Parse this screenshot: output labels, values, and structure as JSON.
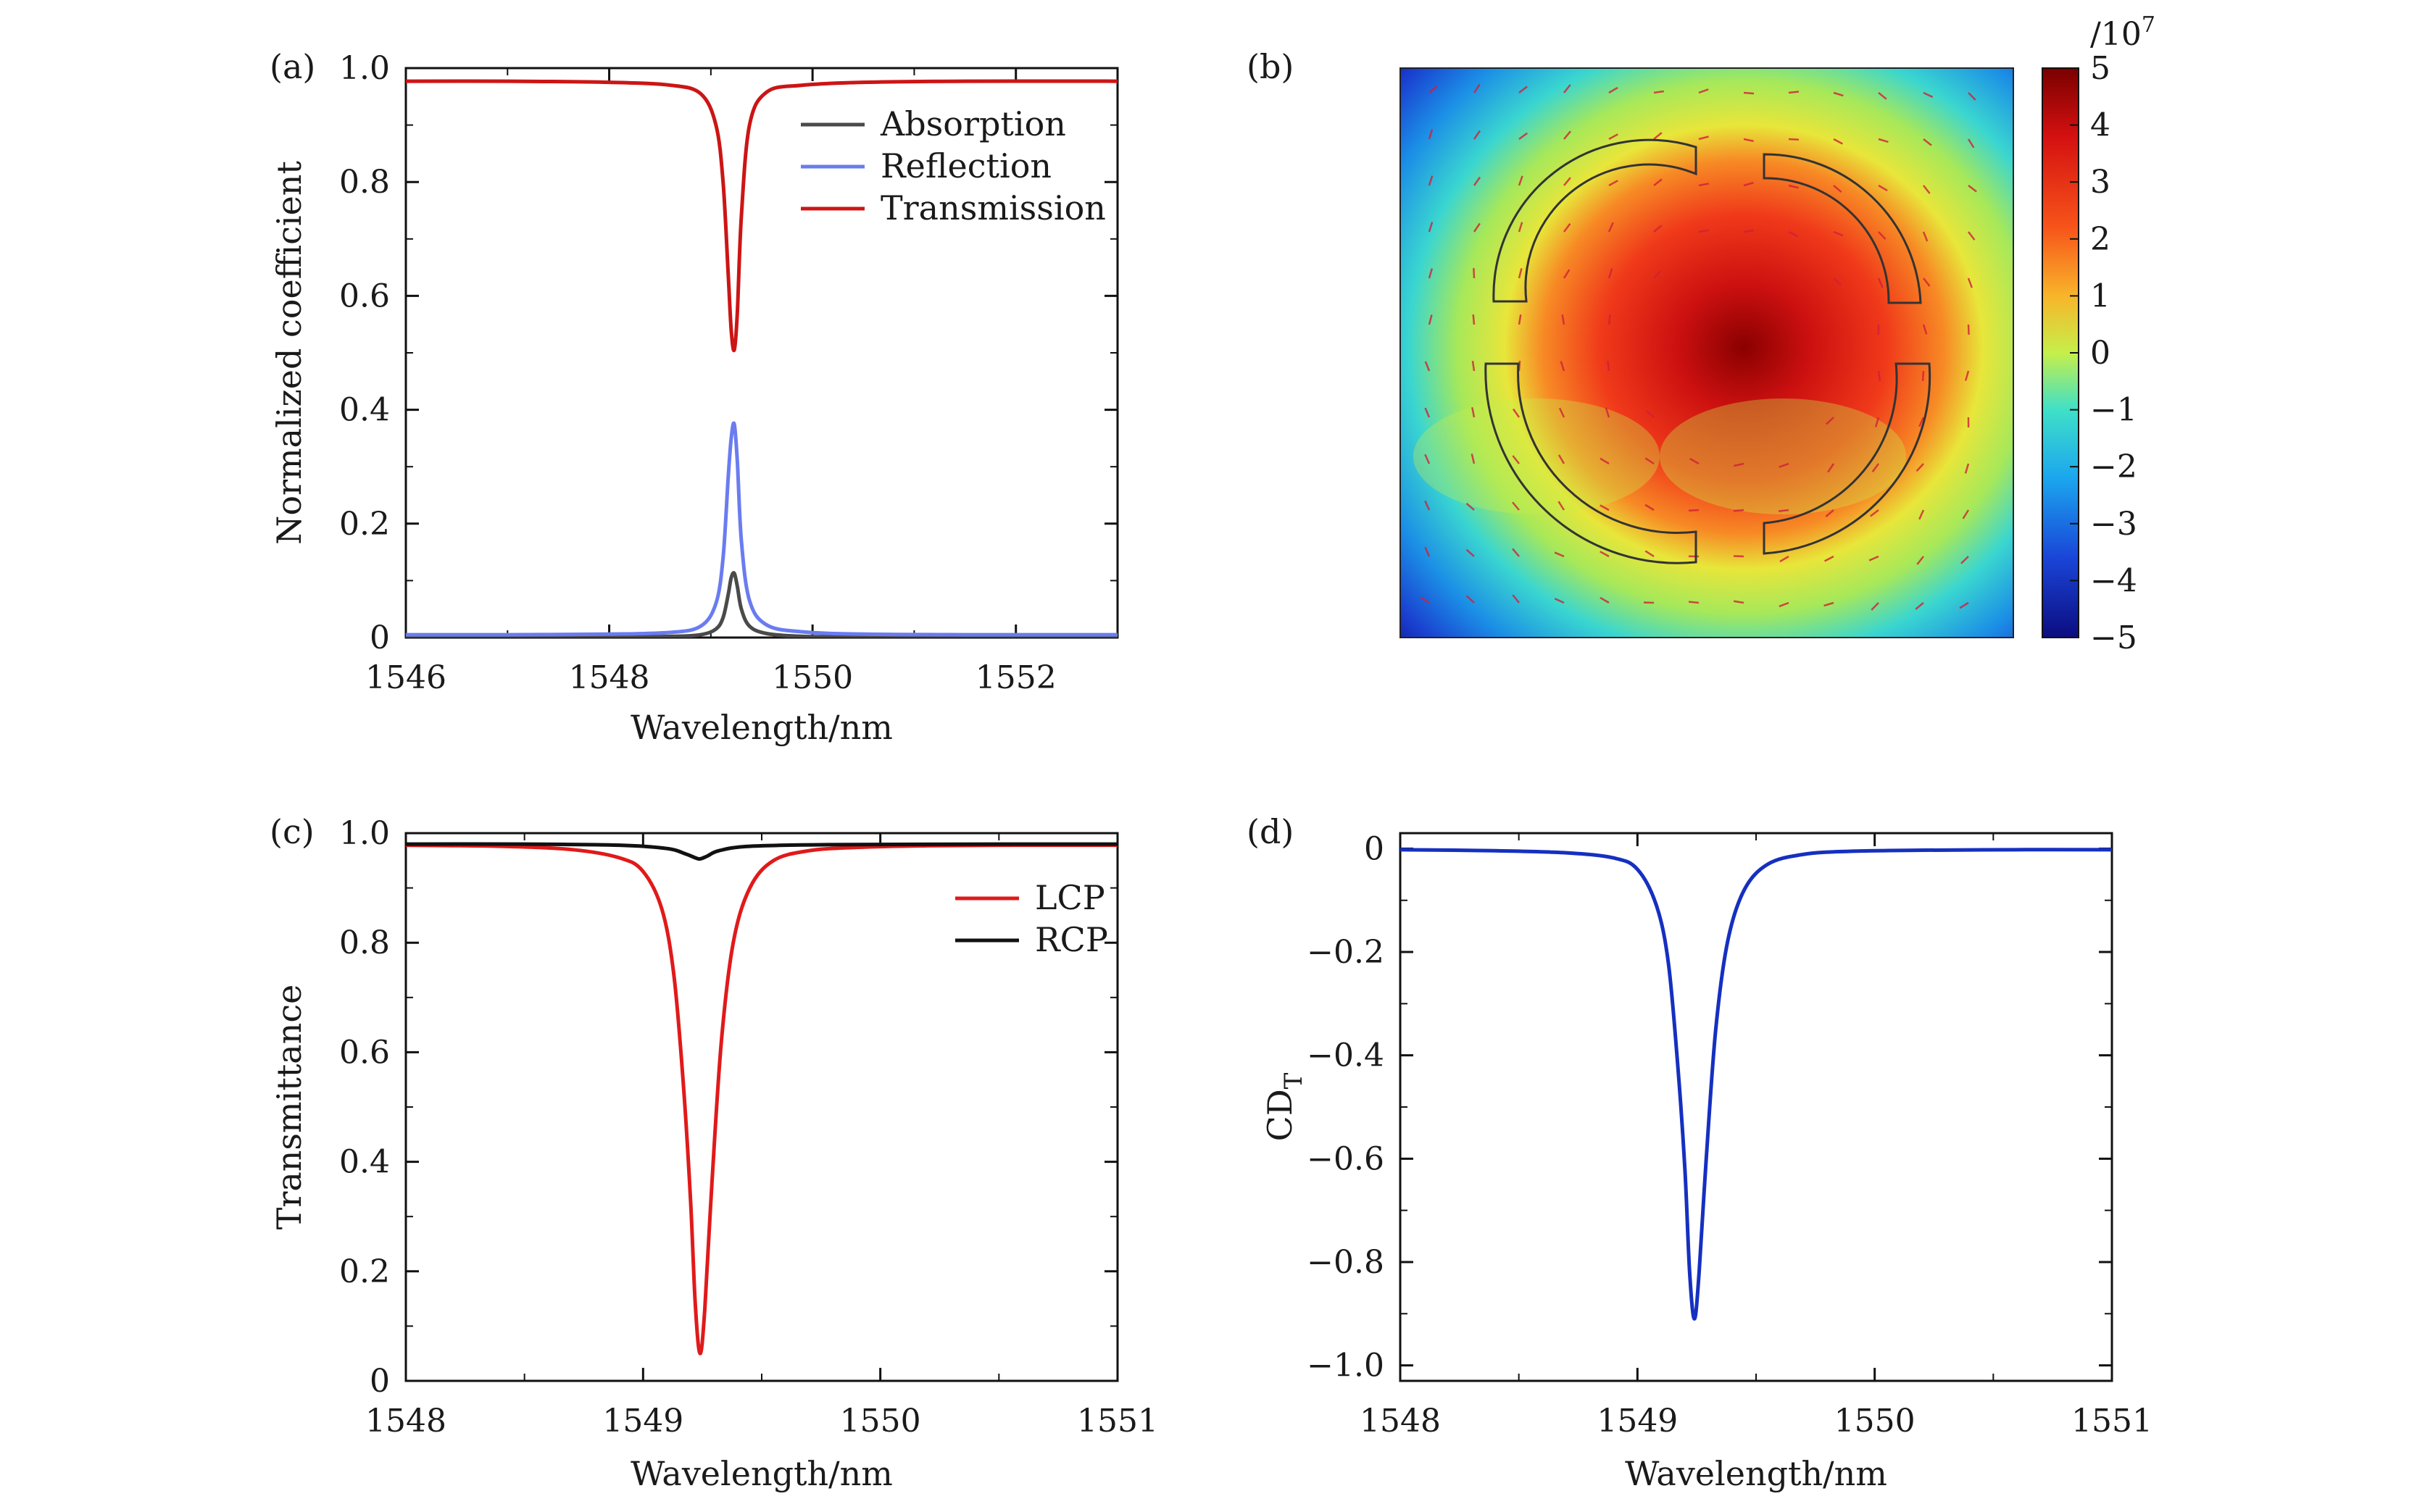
{
  "colors": {
    "absorption": "#4a4a4a",
    "reflection": "#6a7cf0",
    "transmission": "#cc1515",
    "lcp": "#e01a1a",
    "rcp": "#111111",
    "cd": "#1530c0"
  },
  "chart_data": [
    {
      "id": "a",
      "type": "line",
      "panel_label": "(a)",
      "xlabel": "Wavelength/nm",
      "ylabel": "Normalized coefficient",
      "xlim": [
        1546,
        1553
      ],
      "ylim": [
        0,
        1.0
      ],
      "xticks": [
        1546,
        1548,
        1550,
        1552
      ],
      "xtick_labels": [
        "1546",
        "1548",
        "1550",
        "1552"
      ],
      "yticks": [
        0,
        0.2,
        0.4,
        0.6,
        0.8,
        1.0
      ],
      "ytick_labels": [
        "0",
        "0.2",
        "0.4",
        "0.6",
        "0.8",
        "1.0"
      ],
      "legend_position": "top-right",
      "series": [
        {
          "name": "Absorption",
          "color_key": "absorption",
          "x": [
            1546.0,
            1547.0,
            1548.0,
            1548.6,
            1548.9,
            1549.05,
            1549.12,
            1549.17,
            1549.2,
            1549.23,
            1549.26,
            1549.3,
            1549.38,
            1549.55,
            1549.9,
            1550.5,
            1551.5,
            1553.0
          ],
          "y": [
            0.0,
            0.0,
            0.001,
            0.002,
            0.005,
            0.015,
            0.035,
            0.075,
            0.105,
            0.113,
            0.09,
            0.05,
            0.02,
            0.007,
            0.002,
            0.001,
            0.0,
            0.0
          ]
        },
        {
          "name": "Reflection",
          "color_key": "reflection",
          "x": [
            1546.0,
            1547.0,
            1548.0,
            1548.6,
            1548.9,
            1549.05,
            1549.12,
            1549.17,
            1549.2,
            1549.23,
            1549.26,
            1549.3,
            1549.38,
            1549.55,
            1549.9,
            1550.5,
            1551.5,
            1553.0
          ],
          "y": [
            0.005,
            0.005,
            0.006,
            0.009,
            0.02,
            0.06,
            0.14,
            0.28,
            0.35,
            0.375,
            0.31,
            0.17,
            0.065,
            0.022,
            0.01,
            0.006,
            0.005,
            0.005
          ]
        },
        {
          "name": "Transmission",
          "color_key": "transmission",
          "x": [
            1546.0,
            1547.0,
            1548.0,
            1548.6,
            1548.9,
            1549.05,
            1549.12,
            1549.17,
            1549.2,
            1549.23,
            1549.26,
            1549.3,
            1549.38,
            1549.55,
            1549.9,
            1550.5,
            1551.5,
            1553.0
          ],
          "y": [
            0.977,
            0.977,
            0.975,
            0.97,
            0.955,
            0.9,
            0.8,
            0.64,
            0.54,
            0.505,
            0.57,
            0.74,
            0.9,
            0.958,
            0.97,
            0.975,
            0.977,
            0.977
          ]
        }
      ]
    },
    {
      "id": "b",
      "type": "heatmap",
      "panel_label": "(b)",
      "colorbar_scale": "/10",
      "colorbar_exponent": "7",
      "colorbar_range": [
        -5,
        5
      ],
      "colorbar_ticks": [
        5,
        4,
        3,
        2,
        1,
        0,
        -1,
        -2,
        -3,
        -4,
        -5
      ],
      "colorbar_tick_labels": [
        "5",
        "4",
        "3",
        "2",
        "1",
        "0",
        "−1",
        "−2",
        "−3",
        "−4",
        "−5"
      ],
      "description_values": {
        "center_max": 5,
        "corner_min": -5
      }
    },
    {
      "id": "c",
      "type": "line",
      "panel_label": "(c)",
      "xlabel": "Wavelength/nm",
      "ylabel": "Transmittance",
      "xlim": [
        1548,
        1551
      ],
      "ylim": [
        0,
        1.0
      ],
      "xticks": [
        1548,
        1549,
        1550,
        1551
      ],
      "xtick_labels": [
        "1548",
        "1549",
        "1550",
        "1551"
      ],
      "yticks": [
        0,
        0.2,
        0.4,
        0.6,
        0.8,
        1.0
      ],
      "ytick_labels": [
        "0",
        "0.2",
        "0.4",
        "0.6",
        "0.8",
        "1.0"
      ],
      "legend_position": "top-right",
      "series": [
        {
          "name": "LCP",
          "color_key": "lcp",
          "x": [
            1548.0,
            1548.4,
            1548.7,
            1548.9,
            1549.0,
            1549.08,
            1549.13,
            1549.17,
            1549.2,
            1549.22,
            1549.24,
            1549.26,
            1549.29,
            1549.33,
            1549.38,
            1549.45,
            1549.55,
            1549.7,
            1549.9,
            1550.2,
            1550.6,
            1551.0
          ],
          "y": [
            0.978,
            0.976,
            0.97,
            0.955,
            0.93,
            0.86,
            0.74,
            0.54,
            0.33,
            0.14,
            0.05,
            0.13,
            0.36,
            0.62,
            0.8,
            0.9,
            0.95,
            0.968,
            0.974,
            0.977,
            0.978,
            0.978
          ]
        },
        {
          "name": "RCP",
          "color_key": "rcp",
          "x": [
            1548.0,
            1548.5,
            1548.9,
            1549.1,
            1549.18,
            1549.22,
            1549.24,
            1549.27,
            1549.32,
            1549.45,
            1549.8,
            1550.5,
            1551.0
          ],
          "y": [
            0.98,
            0.98,
            0.978,
            0.972,
            0.962,
            0.955,
            0.953,
            0.958,
            0.968,
            0.976,
            0.979,
            0.98,
            0.98
          ]
        }
      ]
    },
    {
      "id": "d",
      "type": "line",
      "panel_label": "(d)",
      "xlabel": "Wavelength/nm",
      "ylabel": "CD",
      "ylabel_sub": "T",
      "xlim": [
        1548,
        1551
      ],
      "ylim": [
        -1.03,
        0.03
      ],
      "xticks": [
        1548,
        1549,
        1550,
        1551
      ],
      "xtick_labels": [
        "1548",
        "1549",
        "1550",
        "1551"
      ],
      "yticks": [
        0,
        -0.2,
        -0.4,
        -0.6,
        -0.8,
        -1.0
      ],
      "ytick_labels": [
        "0",
        "−0.2",
        "−0.4",
        "−0.6",
        "−0.8",
        "−1.0"
      ],
      "series": [
        {
          "name": "CD_T",
          "color_key": "cd",
          "x": [
            1548.0,
            1548.4,
            1548.7,
            1548.9,
            1549.0,
            1549.08,
            1549.13,
            1549.17,
            1549.2,
            1549.22,
            1549.24,
            1549.26,
            1549.29,
            1549.33,
            1549.38,
            1549.45,
            1549.55,
            1549.7,
            1549.9,
            1550.2,
            1550.6,
            1551.0
          ],
          "y": [
            -0.002,
            -0.004,
            -0.008,
            -0.018,
            -0.04,
            -0.11,
            -0.22,
            -0.42,
            -0.62,
            -0.82,
            -0.91,
            -0.82,
            -0.6,
            -0.35,
            -0.18,
            -0.08,
            -0.03,
            -0.011,
            -0.005,
            -0.003,
            -0.002,
            -0.002
          ]
        }
      ]
    }
  ]
}
